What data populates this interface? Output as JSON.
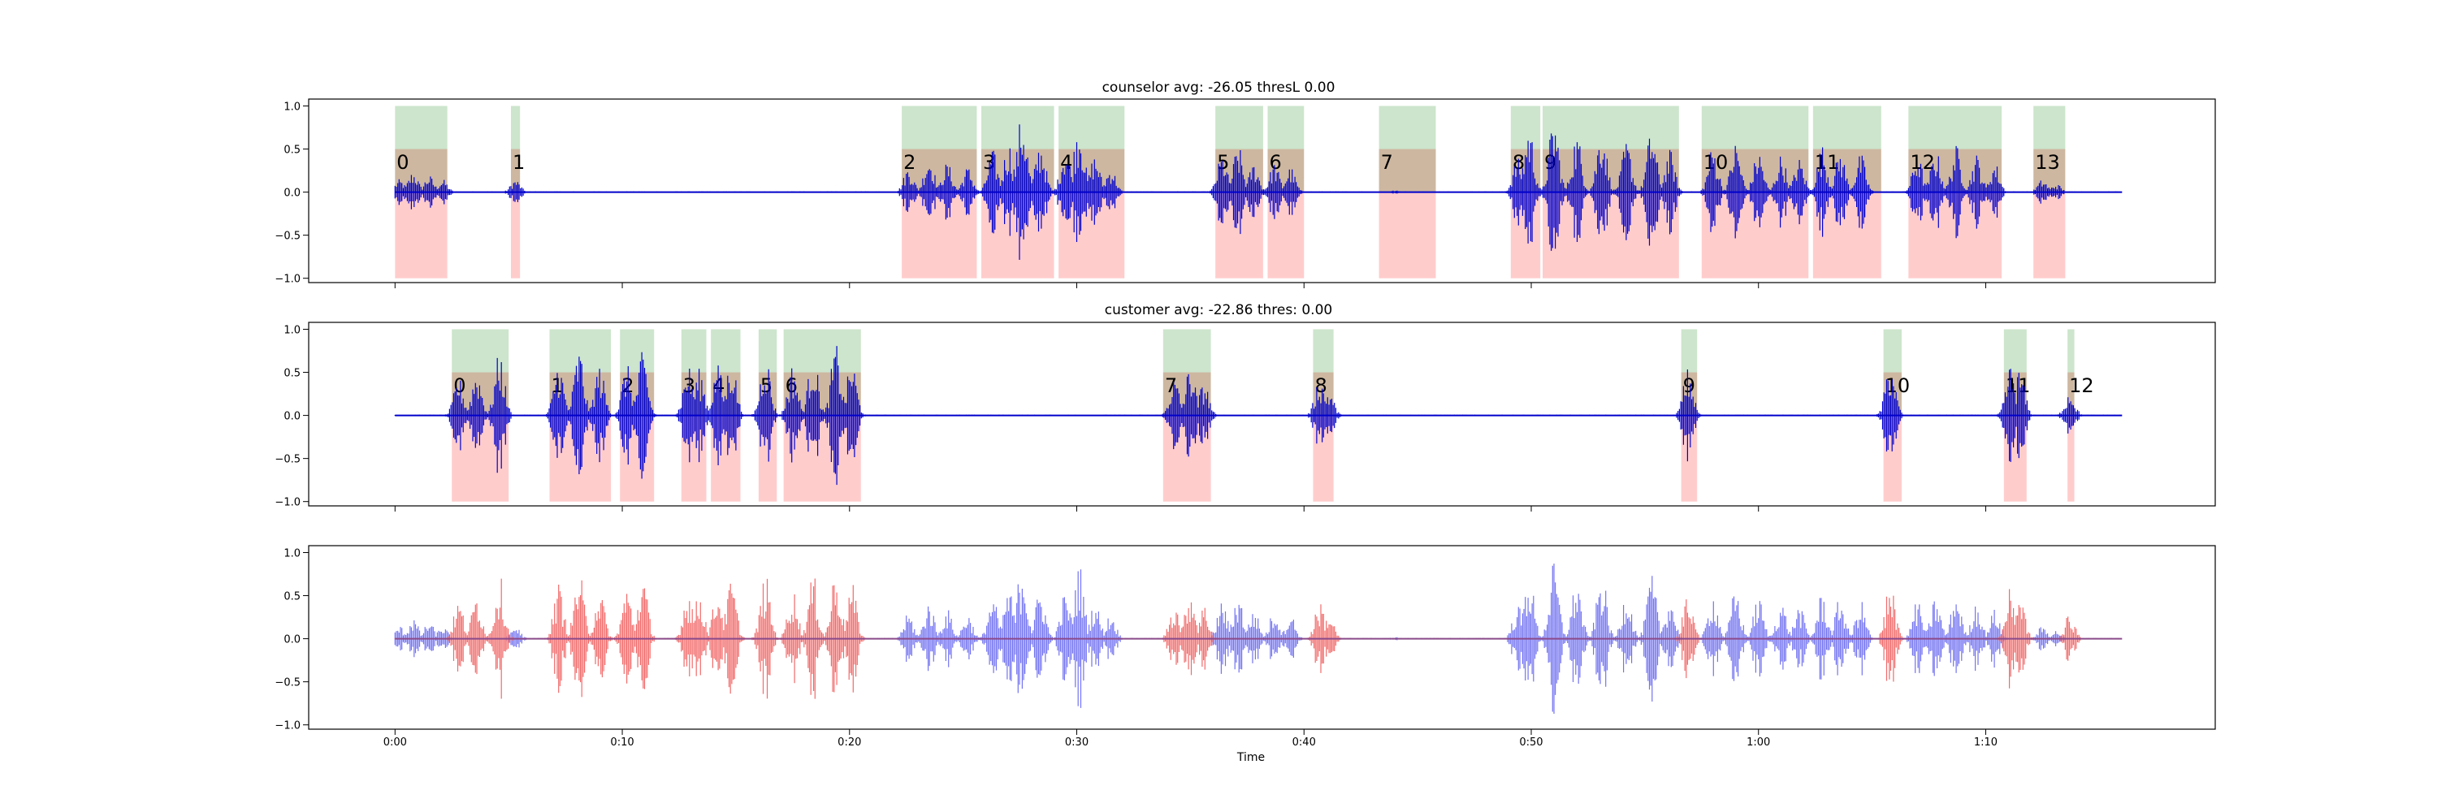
{
  "chart_data": [
    {
      "panel": "counselor",
      "type": "area",
      "title": "counselor avg: -26.05 thresL 0.00",
      "ylim": [
        -1.05,
        1.08
      ],
      "yticks": [
        "1.0",
        "0.5",
        "0.0",
        "−0.5",
        "−1.0"
      ],
      "ytick_values": [
        1.0,
        0.5,
        0.0,
        -0.5,
        -1.0
      ],
      "waveform_color": "#0000cc",
      "band_colors": {
        "top": "#cce5cc",
        "middle": "#cdb7a0",
        "bottom": "#ffcccc"
      },
      "segments": [
        {
          "label": "0",
          "start": 0.0,
          "end": 2.3,
          "activity": [
            [
              0.2,
              0.15
            ],
            [
              0.8,
              0.25
            ],
            [
              1.5,
              0.2
            ],
            [
              2.1,
              0.15
            ]
          ]
        },
        {
          "label": "1",
          "start": 5.1,
          "end": 5.5,
          "activity": [
            [
              5.3,
              0.15
            ]
          ]
        },
        {
          "label": "2",
          "start": 22.3,
          "end": 25.6,
          "activity": [
            [
              22.6,
              0.3
            ],
            [
              23.5,
              0.45
            ],
            [
              24.3,
              0.35
            ],
            [
              25.2,
              0.3
            ]
          ]
        },
        {
          "label": "3",
          "start": 25.8,
          "end": 29.0,
          "activity": [
            [
              26.3,
              0.5
            ],
            [
              27.0,
              0.6
            ],
            [
              27.6,
              0.95
            ],
            [
              28.4,
              0.6
            ]
          ]
        },
        {
          "label": "4",
          "start": 29.2,
          "end": 32.1,
          "activity": [
            [
              29.5,
              0.55
            ],
            [
              30.1,
              0.9
            ],
            [
              30.8,
              0.45
            ],
            [
              31.5,
              0.3
            ]
          ]
        },
        {
          "label": "5",
          "start": 36.1,
          "end": 38.2,
          "activity": [
            [
              36.4,
              0.45
            ],
            [
              37.1,
              0.55
            ],
            [
              37.8,
              0.35
            ]
          ]
        },
        {
          "label": "6",
          "start": 38.4,
          "end": 40.0,
          "activity": [
            [
              38.7,
              0.35
            ],
            [
              39.4,
              0.3
            ]
          ]
        },
        {
          "label": "7",
          "start": 43.3,
          "end": 45.8,
          "activity": [
            [
              44.0,
              0.02
            ]
          ]
        },
        {
          "label": "8",
          "start": 49.1,
          "end": 50.4,
          "activity": [
            [
              49.4,
              0.4
            ],
            [
              49.9,
              0.8
            ]
          ]
        },
        {
          "label": "9",
          "start": 50.5,
          "end": 56.5,
          "activity": [
            [
              51.0,
              0.9
            ],
            [
              52.0,
              0.7
            ],
            [
              53.1,
              0.8
            ],
            [
              54.2,
              0.6
            ],
            [
              55.3,
              0.75
            ],
            [
              56.1,
              0.5
            ]
          ]
        },
        {
          "label": "10",
          "start": 57.5,
          "end": 62.2,
          "activity": [
            [
              58.0,
              0.55
            ],
            [
              59.0,
              0.6
            ],
            [
              60.0,
              0.5
            ],
            [
              61.0,
              0.45
            ],
            [
              61.8,
              0.4
            ]
          ]
        },
        {
          "label": "11",
          "start": 62.4,
          "end": 65.4,
          "activity": [
            [
              62.8,
              0.55
            ],
            [
              63.6,
              0.5
            ],
            [
              64.5,
              0.45
            ]
          ]
        },
        {
          "label": "12",
          "start": 66.6,
          "end": 70.7,
          "activity": [
            [
              67.0,
              0.45
            ],
            [
              67.8,
              0.5
            ],
            [
              68.7,
              0.55
            ],
            [
              69.6,
              0.45
            ],
            [
              70.4,
              0.35
            ]
          ]
        },
        {
          "label": "13",
          "start": 72.1,
          "end": 73.5,
          "activity": [
            [
              72.5,
              0.15
            ],
            [
              73.1,
              0.1
            ]
          ]
        }
      ]
    },
    {
      "panel": "customer",
      "type": "area",
      "title": "customer avg: -22.86 thres: 0.00",
      "ylim": [
        -1.05,
        1.08
      ],
      "yticks": [
        "1.0",
        "0.5",
        "0.0",
        "−0.5",
        "−1.0"
      ],
      "ytick_values": [
        1.0,
        0.5,
        0.0,
        -0.5,
        -1.0
      ],
      "waveform_color": "#0000cc",
      "band_colors": {
        "top": "#cce5cc",
        "middle": "#cdb7a0",
        "bottom": "#ffcccc"
      },
      "segments": [
        {
          "label": "0",
          "start": 2.5,
          "end": 5.0,
          "activity": [
            [
              2.8,
              0.45
            ],
            [
              3.6,
              0.55
            ],
            [
              4.6,
              0.75
            ]
          ]
        },
        {
          "label": "1",
          "start": 6.8,
          "end": 9.5,
          "activity": [
            [
              7.2,
              0.65
            ],
            [
              8.1,
              0.8
            ],
            [
              9.0,
              0.6
            ]
          ]
        },
        {
          "label": "2",
          "start": 9.9,
          "end": 11.4,
          "activity": [
            [
              10.2,
              0.6
            ],
            [
              10.9,
              0.75
            ]
          ]
        },
        {
          "label": "3",
          "start": 12.6,
          "end": 13.7,
          "activity": [
            [
              12.9,
              0.6
            ],
            [
              13.4,
              0.55
            ]
          ]
        },
        {
          "label": "4",
          "start": 13.9,
          "end": 15.2,
          "activity": [
            [
              14.2,
              0.6
            ],
            [
              14.8,
              0.7
            ]
          ]
        },
        {
          "label": "5",
          "start": 16.0,
          "end": 16.8,
          "activity": [
            [
              16.3,
              0.75
            ]
          ]
        },
        {
          "label": "6",
          "start": 17.1,
          "end": 20.5,
          "activity": [
            [
              17.5,
              0.6
            ],
            [
              18.4,
              0.75
            ],
            [
              19.4,
              0.85
            ],
            [
              20.1,
              0.65
            ]
          ]
        },
        {
          "label": "7",
          "start": 33.8,
          "end": 35.9,
          "activity": [
            [
              34.3,
              0.45
            ],
            [
              35.0,
              0.6
            ],
            [
              35.6,
              0.4
            ]
          ]
        },
        {
          "label": "8",
          "start": 40.4,
          "end": 41.3,
          "activity": [
            [
              40.7,
              0.45
            ],
            [
              41.1,
              0.3
            ]
          ]
        },
        {
          "label": "9",
          "start": 56.6,
          "end": 57.3,
          "activity": [
            [
              56.9,
              0.55
            ]
          ]
        },
        {
          "label": "10",
          "start": 65.5,
          "end": 66.3,
          "activity": [
            [
              65.8,
              0.65
            ]
          ]
        },
        {
          "label": "11",
          "start": 70.8,
          "end": 71.8,
          "activity": [
            [
              71.1,
              0.6
            ],
            [
              71.5,
              0.55
            ]
          ]
        },
        {
          "label": "12",
          "start": 73.6,
          "end": 73.9,
          "activity": [
            [
              73.7,
              0.3
            ]
          ]
        }
      ]
    },
    {
      "panel": "combined",
      "type": "area",
      "title": "",
      "xlabel": "Time",
      "ylim": [
        -1.05,
        1.08
      ],
      "yticks": [
        "1.0",
        "0.5",
        "0.0",
        "−0.5",
        "−1.0"
      ],
      "ytick_values": [
        1.0,
        0.5,
        0.0,
        -0.5,
        -1.0
      ],
      "xticks": [
        "0:00",
        "0:10",
        "0:20",
        "0:30",
        "0:40",
        "0:50",
        "1:00",
        "1:10"
      ],
      "xtick_values": [
        0,
        10,
        20,
        30,
        40,
        50,
        60,
        70
      ],
      "xlim": [
        -3.8,
        80.1
      ],
      "signal_range": [
        0.0,
        76.0
      ],
      "counselor_color": "#6464f0",
      "customer_color": "#f05a5a",
      "series_sources": [
        "counselor",
        "customer"
      ]
    }
  ]
}
